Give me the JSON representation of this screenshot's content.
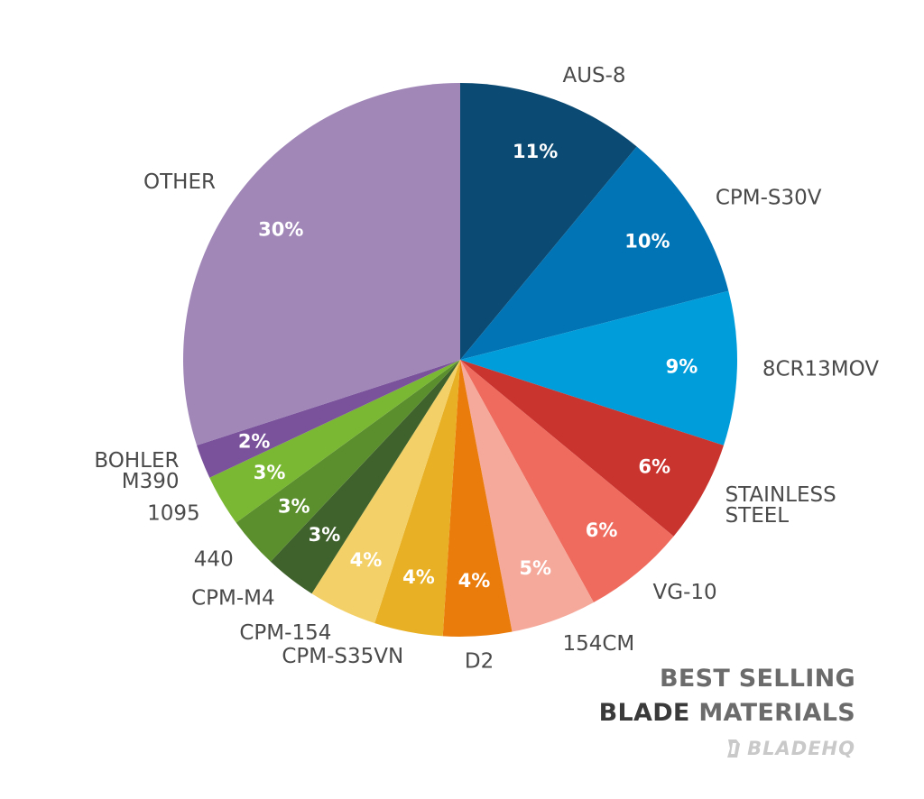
{
  "chart_data": {
    "type": "pie",
    "start_angle_deg": 0,
    "direction": "clockwise",
    "slices": [
      {
        "label": "AUS-8",
        "value": 11,
        "pct_label": "11%",
        "color": "#0b4a73"
      },
      {
        "label": "CPM-S30V",
        "value": 10,
        "pct_label": "10%",
        "color": "#0074b5"
      },
      {
        "label": "8CR13MOV",
        "value": 9,
        "pct_label": "9%",
        "color": "#009ddb"
      },
      {
        "label": "STAINLESS\nSTEEL",
        "value": 6,
        "pct_label": "6%",
        "color": "#c9342f"
      },
      {
        "label": "VG-10",
        "value": 6,
        "pct_label": "6%",
        "color": "#ee6b5e"
      },
      {
        "label": "154CM",
        "value": 5,
        "pct_label": "5%",
        "color": "#f5a99b"
      },
      {
        "label": "D2",
        "value": 4,
        "pct_label": "4%",
        "color": "#ea7c0c"
      },
      {
        "label": "CPM-S35VN",
        "value": 4,
        "pct_label": "4%",
        "color": "#e8b024"
      },
      {
        "label": "CPM-154",
        "value": 4,
        "pct_label": "4%",
        "color": "#f3d168"
      },
      {
        "label": "CPM-M4",
        "value": 3,
        "pct_label": "3%",
        "color": "#3f622c"
      },
      {
        "label": "440",
        "value": 3,
        "pct_label": "3%",
        "color": "#5b8f2e"
      },
      {
        "label": "1095",
        "value": 3,
        "pct_label": "3%",
        "color": "#7ab733"
      },
      {
        "label": "BOHLER\nM390",
        "value": 2,
        "pct_label": "2%",
        "color": "#7a529b"
      },
      {
        "label": "OTHER",
        "value": 30,
        "pct_label": "30%",
        "color": "#a087b8"
      }
    ]
  },
  "title": {
    "line1": "BEST SELLING",
    "line2_bold": "BLADE",
    "line2_rest": "MATERIALS"
  },
  "logo": {
    "text": "BLADEHQ"
  }
}
